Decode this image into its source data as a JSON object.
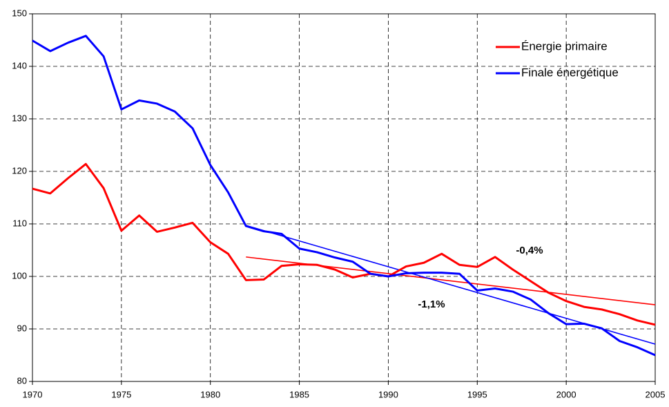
{
  "chart_data": {
    "type": "line",
    "x": [
      1970,
      1971,
      1972,
      1973,
      1974,
      1975,
      1976,
      1977,
      1978,
      1979,
      1980,
      1981,
      1982,
      1983,
      1984,
      1985,
      1986,
      1987,
      1988,
      1989,
      1990,
      1991,
      1992,
      1993,
      1994,
      1995,
      1996,
      1997,
      1998,
      1999,
      2000,
      2001,
      2002,
      2003,
      2004,
      2005
    ],
    "series": [
      {
        "name": "Énergie primaire",
        "color": "#ff0000",
        "values": [
          116.7,
          115.8,
          118.7,
          121.4,
          116.8,
          108.7,
          111.6,
          108.5,
          109.3,
          110.2,
          106.5,
          104.3,
          99.3,
          99.4,
          102.0,
          102.3,
          102.2,
          101.3,
          99.8,
          100.5,
          100.0,
          101.9,
          102.6,
          104.3,
          102.2,
          101.8,
          103.7,
          101.3,
          99.1,
          96.9,
          95.3,
          94.2,
          93.7,
          92.8,
          91.6,
          90.8
        ]
      },
      {
        "name": "Finale énergétique",
        "color": "#0000ff",
        "values": [
          144.9,
          142.9,
          144.5,
          145.8,
          141.9,
          131.8,
          133.5,
          132.9,
          131.4,
          128.2,
          121.2,
          116.0,
          109.6,
          108.6,
          108.1,
          105.3,
          104.6,
          103.6,
          102.8,
          100.5,
          100.0,
          100.6,
          100.7,
          100.7,
          100.5,
          97.3,
          97.7,
          97.1,
          95.6,
          93.0,
          90.9,
          91.0,
          90.1,
          87.7,
          86.5,
          85.0
        ]
      }
    ],
    "trendlines": [
      {
        "color": "#ff0000",
        "x": [
          1982,
          2005
        ],
        "values": [
          103.7,
          94.6
        ],
        "label": "-0,4%"
      },
      {
        "color": "#0000ff",
        "x": [
          1982,
          2005
        ],
        "values": [
          109.7,
          87.1
        ],
        "label": "-1,1%"
      }
    ],
    "xlim": [
      1970,
      2005
    ],
    "xticks": [
      1970,
      1975,
      1980,
      1985,
      1990,
      1995,
      2000,
      2005
    ],
    "ylim": [
      80,
      150
    ],
    "yticks": [
      80,
      90,
      100,
      110,
      120,
      130,
      140,
      150
    ],
    "grid": true,
    "legend": "top-right"
  }
}
